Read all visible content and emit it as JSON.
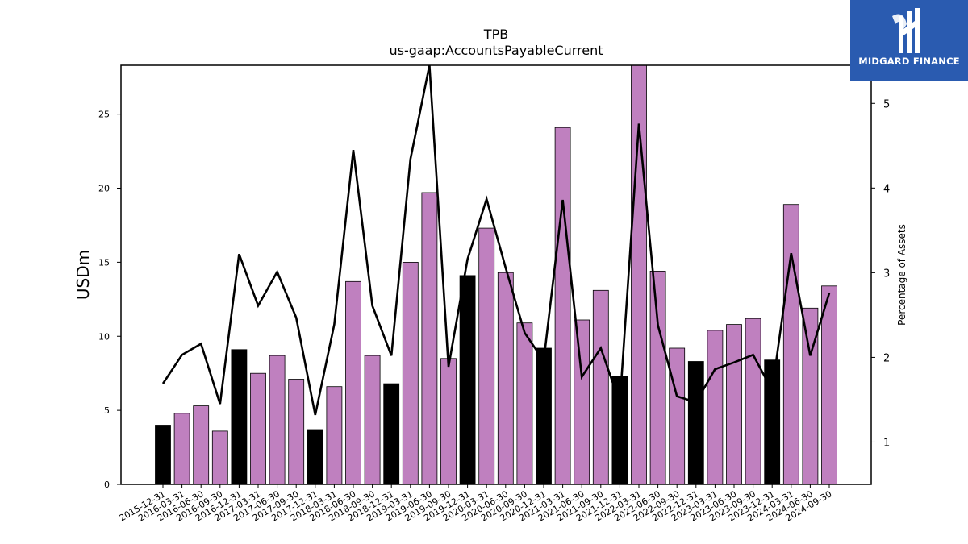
{
  "chart_data": {
    "type": "bar",
    "title": "TPB",
    "subtitle": "us-gaap:AccountsPayableCurrent",
    "ylabel": "USDm",
    "y2label": "Percentage of Assets",
    "ylim": [
      0,
      28.3
    ],
    "y2lim": [
      0.5,
      5.45
    ],
    "yticks": [
      0,
      5,
      10,
      15,
      20,
      25
    ],
    "y2ticks": [
      1,
      2,
      3,
      4,
      5
    ],
    "categories": [
      "2015-12-31",
      "2016-03-31",
      "2016-06-30",
      "2016-09-30",
      "2016-12-31",
      "2017-03-31",
      "2017-06-30",
      "2017-09-30",
      "2017-12-31",
      "2018-03-31",
      "2018-06-30",
      "2018-09-30",
      "2018-12-31",
      "2019-03-31",
      "2019-06-30",
      "2019-09-30",
      "2019-12-31",
      "2020-03-31",
      "2020-06-30",
      "2020-09-30",
      "2020-12-31",
      "2021-03-31",
      "2021-06-30",
      "2021-09-30",
      "2021-12-31",
      "2022-03-31",
      "2022-06-30",
      "2022-09-30",
      "2022-12-31",
      "2023-03-31",
      "2023-06-30",
      "2023-09-30",
      "2023-12-31",
      "2024-03-31",
      "2024-06-30",
      "2024-09-30"
    ],
    "series": [
      {
        "type": "bar",
        "values": [
          4.0,
          4.8,
          5.3,
          3.6,
          9.1,
          7.5,
          8.7,
          7.1,
          3.7,
          6.6,
          13.7,
          8.7,
          6.8,
          15.0,
          19.7,
          8.5,
          14.1,
          17.3,
          14.3,
          10.9,
          9.2,
          24.1,
          11.1,
          13.1,
          7.3,
          28.3,
          14.4,
          9.2,
          8.3,
          10.4,
          10.8,
          11.2,
          8.4,
          18.9,
          11.9,
          13.4
        ],
        "bar_colors": [
          "#000000",
          "#bf80bf",
          "#bf80bf",
          "#bf80bf",
          "#000000",
          "#bf80bf",
          "#bf80bf",
          "#bf80bf",
          "#000000",
          "#bf80bf",
          "#bf80bf",
          "#bf80bf",
          "#000000",
          "#bf80bf",
          "#bf80bf",
          "#bf80bf",
          "#000000",
          "#bf80bf",
          "#bf80bf",
          "#bf80bf",
          "#000000",
          "#bf80bf",
          "#bf80bf",
          "#bf80bf",
          "#000000",
          "#bf80bf",
          "#bf80bf",
          "#bf80bf",
          "#000000",
          "#bf80bf",
          "#bf80bf",
          "#bf80bf",
          "#000000",
          "#bf80bf",
          "#bf80bf",
          "#bf80bf"
        ]
      },
      {
        "type": "line",
        "axis": "right",
        "color": "#000000",
        "values": [
          1.69,
          2.03,
          2.16,
          1.45,
          3.22,
          2.61,
          3.01,
          2.47,
          1.32,
          2.39,
          4.45,
          2.61,
          2.02,
          4.34,
          5.45,
          1.89,
          3.16,
          3.87,
          3.06,
          2.29,
          1.96,
          3.86,
          1.77,
          2.11,
          1.46,
          4.76,
          2.38,
          1.54,
          1.47,
          1.86,
          1.94,
          2.03,
          1.61,
          3.23,
          2.02,
          2.76
        ]
      }
    ],
    "grid": false,
    "legend": "none"
  },
  "logo": {
    "text": "MIDGARD FINANCE",
    "color": "#2a5bb0"
  }
}
